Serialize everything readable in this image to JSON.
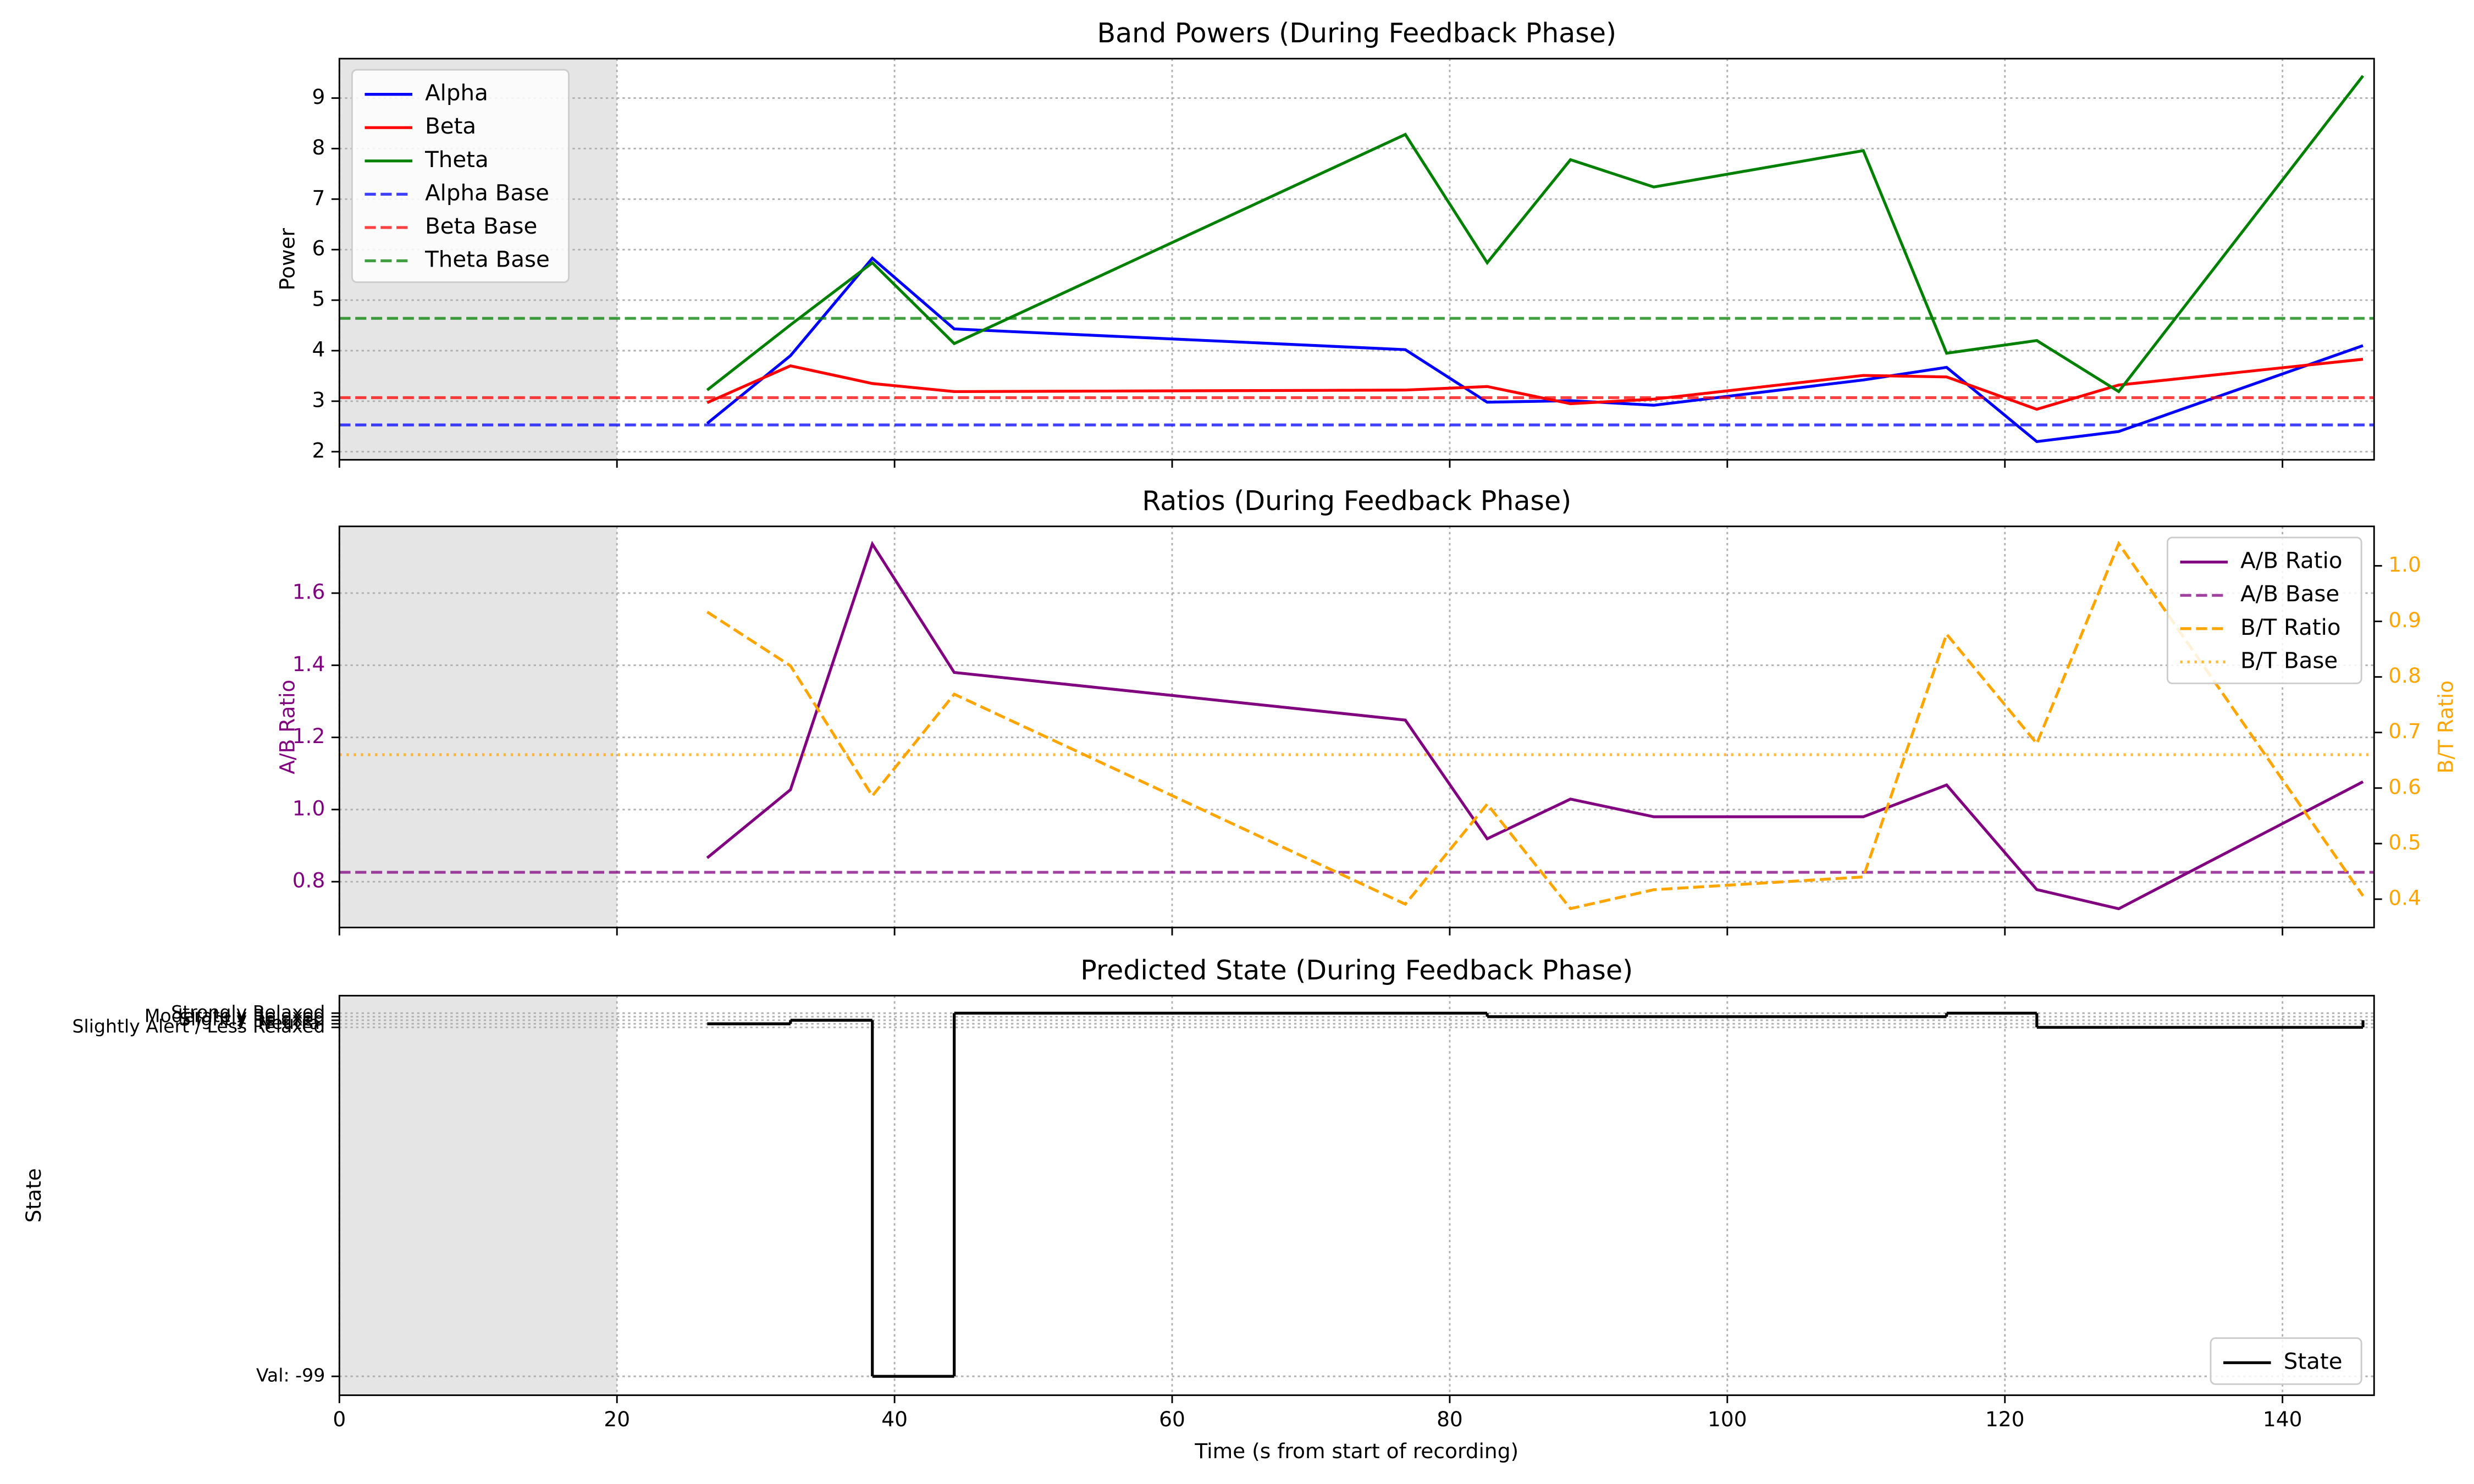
{
  "chart_data": [
    {
      "type": "line",
      "title": "Band Powers (During Feedback Phase)",
      "ylabel": "Power",
      "x": [
        26.5,
        32.5,
        38.4,
        44.3,
        76.8,
        82.7,
        88.7,
        94.7,
        109.8,
        115.8,
        122.3,
        128.2,
        145.8
      ],
      "xlim": [
        0,
        146.6
      ],
      "xticks": [
        0,
        20,
        40,
        60,
        80,
        100,
        120,
        140
      ],
      "show_xtick_labels": false,
      "ylim": [
        1.84,
        9.78
      ],
      "yticks": [
        2,
        3,
        4,
        5,
        6,
        7,
        8,
        9
      ],
      "shade": [
        0,
        20
      ],
      "grid": true,
      "legend": "upper left",
      "series": [
        {
          "name": "Alpha",
          "color": "blue",
          "dash": "solid",
          "values": [
            2.56,
            3.9,
            5.83,
            4.43,
            4.02,
            2.98,
            3.01,
            2.92,
            3.42,
            3.67,
            2.2,
            2.4,
            4.1
          ]
        },
        {
          "name": "Beta",
          "color": "red",
          "dash": "solid",
          "values": [
            2.97,
            3.7,
            3.35,
            3.19,
            3.22,
            3.29,
            2.95,
            3.04,
            3.51,
            3.48,
            2.84,
            3.32,
            3.83
          ]
        },
        {
          "name": "Theta",
          "color": "green",
          "dash": "solid",
          "values": [
            3.22,
            4.51,
            5.74,
            4.14,
            8.28,
            5.74,
            7.78,
            7.24,
            7.96,
            3.95,
            4.2,
            3.19,
            9.44
          ]
        },
        {
          "name": "Alpha Base",
          "color": "blue",
          "dash": "dashed",
          "alpha": 0.75,
          "value": 2.53
        },
        {
          "name": "Beta Base",
          "color": "red",
          "dash": "dashed",
          "alpha": 0.75,
          "value": 3.07
        },
        {
          "name": "Theta Base",
          "color": "green",
          "dash": "dashed",
          "alpha": 0.75,
          "value": 4.64
        }
      ]
    },
    {
      "type": "line",
      "title": "Ratios (During Feedback Phase)",
      "ylabel": "A/B Ratio",
      "y2label": "B/T Ratio",
      "y_color": "purple",
      "y2_color": "orange",
      "x": [
        26.5,
        32.5,
        38.4,
        44.3,
        76.8,
        82.7,
        88.7,
        94.7,
        109.8,
        115.8,
        122.3,
        128.2,
        145.8
      ],
      "xlim": [
        0,
        146.6
      ],
      "xticks": [
        0,
        20,
        40,
        60,
        80,
        100,
        120,
        140
      ],
      "show_xtick_labels": false,
      "ylim": [
        0.673,
        1.785
      ],
      "yticks": [
        0.8,
        {
          "value": 1,
          "label": "1.0"
        },
        1.2,
        1.4,
        1.6
      ],
      "y2lim": [
        0.349,
        1.071
      ],
      "y2ticks": [
        0.4,
        0.5,
        0.6,
        0.7,
        0.8,
        0.9,
        {
          "value": 1,
          "label": "1.0"
        }
      ],
      "shade": [
        0,
        20
      ],
      "grid": true,
      "legend": "upper right",
      "series": [
        {
          "name": "A/B Ratio",
          "color": "purple",
          "dash": "solid",
          "values": [
            0.866,
            1.055,
            1.736,
            1.38,
            1.248,
            0.919,
            1.029,
            0.98,
            0.98,
            1.068,
            0.778,
            0.725,
            1.077
          ]
        },
        {
          "name": "A/B Base",
          "color": "purple",
          "dash": "dashed",
          "alpha": 0.75,
          "value": 0.826
        },
        {
          "name": "B/T Ratio",
          "color": "orange",
          "dash": "dashed",
          "axis": "y2",
          "values": [
            0.917,
            0.82,
            0.586,
            0.769,
            0.391,
            0.571,
            0.383,
            0.417,
            0.44,
            0.877,
            0.68,
            1.04,
            0.406
          ]
        },
        {
          "name": "B/T Base",
          "color": "orange",
          "dash": "dotted",
          "alpha": 0.75,
          "axis": "y2",
          "value": 0.66
        }
      ]
    },
    {
      "type": "step",
      "title": "Predicted State (During Feedback Phase)",
      "ylabel": "State",
      "xlabel": "Time (s from start of recording)",
      "x": [
        26.5,
        32.5,
        38.4,
        44.3,
        76.8,
        82.7,
        88.7,
        94.7,
        109.8,
        115.8,
        122.3,
        128.2,
        145.8
      ],
      "xlim": [
        0,
        146.6
      ],
      "xticks": [
        0,
        20,
        40,
        60,
        80,
        100,
        120,
        140
      ],
      "show_xtick_labels": true,
      "ylim": [
        -104.3,
        7.9
      ],
      "yticks": [
        {
          "value": -99,
          "label": "Val: -99"
        },
        {
          "value": -1,
          "label": "Slightly Alert / Less Relaxed"
        },
        {
          "value": 0,
          "label": "Neutral"
        },
        {
          "value": 1,
          "label": "Slightly Relaxed"
        },
        {
          "value": 2,
          "label": "Moderately Relaxed"
        },
        {
          "value": 3,
          "label": "Strongly Relaxed"
        }
      ],
      "shade": [
        0,
        20
      ],
      "grid": true,
      "legend": "lower right",
      "drawstyle": "steps-post",
      "series": [
        {
          "name": "State",
          "color": "black",
          "dash": "solid",
          "values": [
            0,
            1,
            -99,
            3,
            3,
            2,
            2,
            2,
            2,
            3,
            -1,
            -1,
            1
          ]
        }
      ]
    }
  ]
}
